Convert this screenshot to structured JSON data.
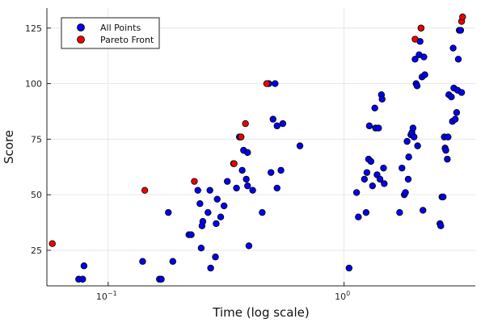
{
  "chart_data": {
    "type": "scatter",
    "title": "",
    "xlabel": "Time (log scale)",
    "ylabel": "Score",
    "xscale": "log",
    "xlim": [
      0.055,
      3.6
    ],
    "ylim": [
      9,
      134
    ],
    "grid": true,
    "legend_position": "top-left",
    "x_ticks": [
      {
        "value": 0.1,
        "base": "10",
        "exp": "−1"
      },
      {
        "value": 1,
        "base": "10",
        "exp": "0"
      }
    ],
    "y_ticks": [
      25,
      50,
      75,
      100,
      125
    ],
    "series": [
      {
        "name": "All Points",
        "color": "#0000ee",
        "points": [
          [
            0.075,
            12
          ],
          [
            0.078,
            12
          ],
          [
            0.079,
            18
          ],
          [
            0.14,
            20
          ],
          [
            0.165,
            12
          ],
          [
            0.168,
            12
          ],
          [
            0.18,
            42
          ],
          [
            0.188,
            20
          ],
          [
            0.22,
            32
          ],
          [
            0.225,
            32
          ],
          [
            0.24,
            52
          ],
          [
            0.245,
            46
          ],
          [
            0.248,
            26
          ],
          [
            0.25,
            36
          ],
          [
            0.252,
            38
          ],
          [
            0.265,
            42
          ],
          [
            0.27,
            52
          ],
          [
            0.272,
            17
          ],
          [
            0.285,
            22
          ],
          [
            0.287,
            37
          ],
          [
            0.29,
            48
          ],
          [
            0.3,
            40
          ],
          [
            0.31,
            45
          ],
          [
            0.32,
            56
          ],
          [
            0.34,
            64
          ],
          [
            0.35,
            53
          ],
          [
            0.36,
            76
          ],
          [
            0.37,
            61
          ],
          [
            0.375,
            70
          ],
          [
            0.385,
            57
          ],
          [
            0.39,
            54
          ],
          [
            0.395,
            27
          ],
          [
            0.39,
            69
          ],
          [
            0.41,
            52
          ],
          [
            0.45,
            42
          ],
          [
            0.48,
            100
          ],
          [
            0.49,
            60
          ],
          [
            0.5,
            84
          ],
          [
            0.51,
            100
          ],
          [
            0.52,
            53
          ],
          [
            0.52,
            81
          ],
          [
            0.55,
            82
          ],
          [
            0.54,
            61
          ],
          [
            0.65,
            72
          ],
          [
            1.05,
            17
          ],
          [
            1.15,
            40
          ],
          [
            1.13,
            51
          ],
          [
            1.22,
            57
          ],
          [
            1.24,
            42
          ],
          [
            1.25,
            60
          ],
          [
            1.27,
            66
          ],
          [
            1.28,
            81
          ],
          [
            1.3,
            65
          ],
          [
            1.32,
            54
          ],
          [
            1.35,
            89
          ],
          [
            1.36,
            80
          ],
          [
            1.38,
            59
          ],
          [
            1.4,
            80
          ],
          [
            1.42,
            57
          ],
          [
            1.44,
            95
          ],
          [
            1.45,
            93
          ],
          [
            1.47,
            62
          ],
          [
            1.48,
            55
          ],
          [
            1.72,
            42
          ],
          [
            1.76,
            62
          ],
          [
            1.8,
            50
          ],
          [
            1.82,
            51
          ],
          [
            1.85,
            74
          ],
          [
            1.87,
            57
          ],
          [
            1.88,
            67
          ],
          [
            1.92,
            77
          ],
          [
            1.94,
            78
          ],
          [
            1.96,
            80
          ],
          [
            1.98,
            76
          ],
          [
            2.0,
            111
          ],
          [
            2.02,
            100
          ],
          [
            2.04,
            99
          ],
          [
            2.05,
            72
          ],
          [
            2.08,
            113
          ],
          [
            2.1,
            119
          ],
          [
            2.12,
            125
          ],
          [
            2.14,
            103
          ],
          [
            2.16,
            43
          ],
          [
            2.2,
            104
          ],
          [
            2.18,
            112
          ],
          [
            2.55,
            37
          ],
          [
            2.57,
            36
          ],
          [
            2.6,
            49
          ],
          [
            2.63,
            49
          ],
          [
            2.66,
            76
          ],
          [
            2.68,
            71
          ],
          [
            2.7,
            70
          ],
          [
            2.74,
            66
          ],
          [
            2.76,
            76
          ],
          [
            2.78,
            95
          ],
          [
            2.85,
            94
          ],
          [
            2.88,
            83
          ],
          [
            2.9,
            116
          ],
          [
            2.92,
            98
          ],
          [
            2.96,
            84
          ],
          [
            3.0,
            87
          ],
          [
            3.03,
            97
          ],
          [
            3.05,
            111
          ],
          [
            3.08,
            124
          ],
          [
            3.12,
            124
          ],
          [
            3.15,
            96
          ]
        ]
      },
      {
        "name": "Pareto Front",
        "color": "#ee0000",
        "points": [
          [
            0.058,
            28
          ],
          [
            0.143,
            52
          ],
          [
            0.232,
            56
          ],
          [
            0.342,
            64
          ],
          [
            0.366,
            76
          ],
          [
            0.382,
            82
          ],
          [
            0.47,
            100
          ],
          [
            2.0,
            120
          ],
          [
            2.12,
            125
          ],
          [
            3.15,
            128
          ],
          [
            3.18,
            130
          ]
        ]
      }
    ]
  }
}
